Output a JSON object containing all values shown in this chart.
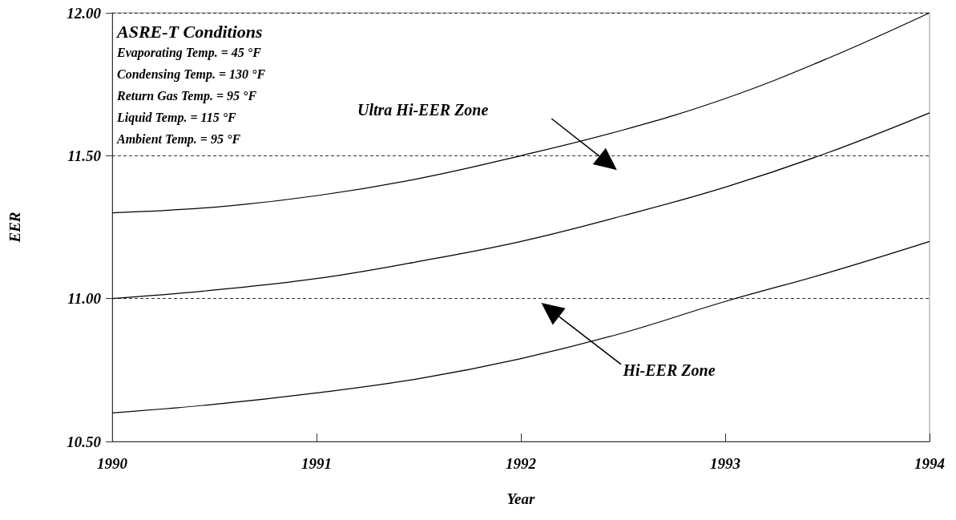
{
  "chart_data": {
    "type": "line",
    "xlabel": "Year",
    "ylabel": "EER",
    "x": [
      1990,
      1990.5,
      1991,
      1991.5,
      1992,
      1992.5,
      1993,
      1993.5,
      1994
    ],
    "series": [
      {
        "color": "#000000",
        "values": [
          11.3,
          11.32,
          11.36,
          11.42,
          11.5,
          11.59,
          11.7,
          11.84,
          12.0
        ]
      },
      {
        "color": "#000000",
        "values": [
          11.0,
          11.03,
          11.07,
          11.13,
          11.2,
          11.29,
          11.39,
          11.51,
          11.65
        ]
      },
      {
        "color": "#000000",
        "values": [
          10.6,
          10.63,
          10.67,
          10.72,
          10.79,
          10.88,
          10.99,
          11.09,
          11.2
        ]
      }
    ],
    "xlim": [
      1990,
      1994
    ],
    "xticks": [
      1990,
      1991,
      1992,
      1993,
      1994
    ],
    "ylim": [
      10.5,
      12
    ],
    "yticks": [
      {
        "value": 10.5,
        "label": "10.50"
      },
      {
        "value": 11,
        "label": "11.00"
      },
      {
        "value": 11.5,
        "label": "11.50"
      },
      {
        "value": 12,
        "label": "12.00"
      }
    ],
    "grid": "y",
    "marker": "none",
    "line_style": "solid",
    "annotations": [
      "ASRE-T Conditions",
      "Evaporating Temp. = 45 °F",
      "Condensing Temp. = 130 °F",
      "Return Gas Temp. = 95 °F",
      "Liquid Temp. = 115 °F",
      "Ambient Temp. = 95 °F",
      "Ultra Hi-EER Zone",
      "Hi-EER Zone"
    ]
  }
}
